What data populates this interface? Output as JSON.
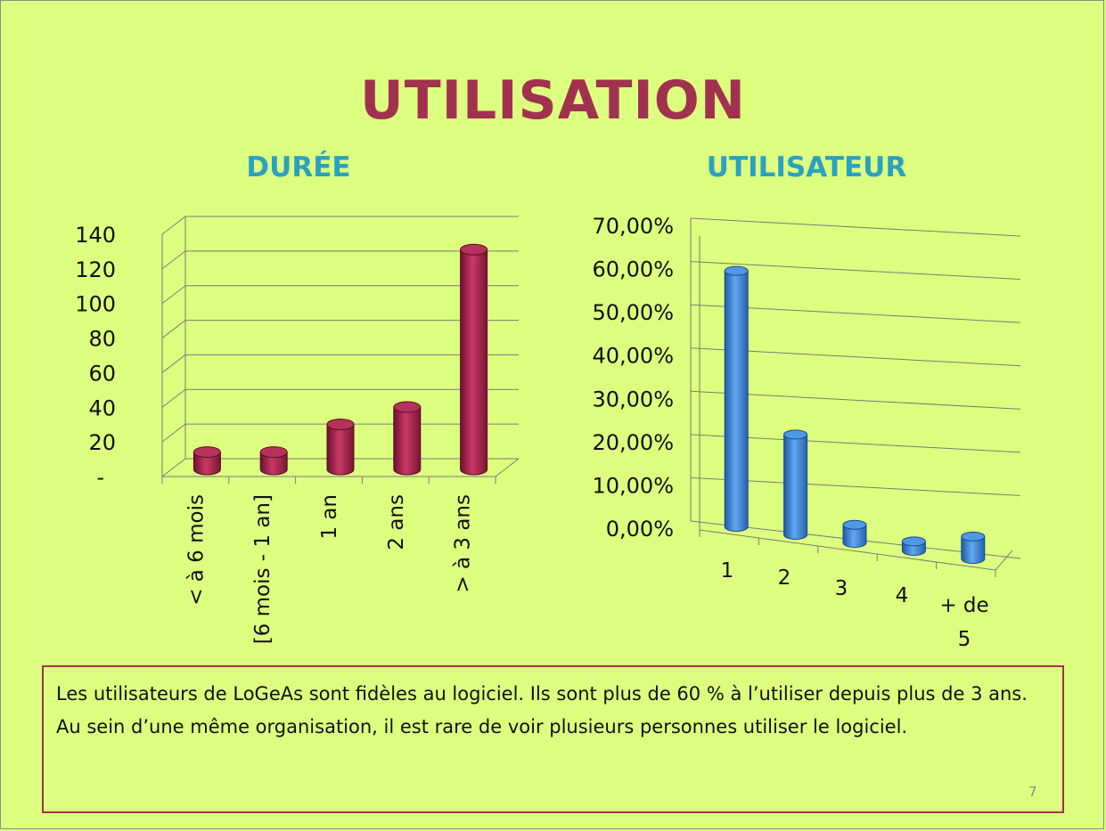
{
  "slide": {
    "title": "UTILISATION",
    "page_number": "7",
    "note_lines": [
      "Les utilisateurs de LoGeAs sont fidèles au logiciel. Ils sont plus de 60 % à l’utiliser depuis plus de 3 ans.",
      "Au sein d’une même organisation, il est rare de voir plusieurs personnes utiliser le logiciel."
    ]
  },
  "colors": {
    "background": "#ddff7f",
    "title": "#a1324f",
    "chart_title": "#2aa1bf",
    "bar_left": "#a3284e",
    "bar_right": "#3d86d8"
  },
  "chart_data": [
    {
      "type": "bar",
      "title": "DURÉE",
      "categories": [
        "< à 6 mois",
        "[6 mois - 1 an]",
        "1 an",
        "2 ans",
        "> à 3 ans"
      ],
      "values": [
        10,
        10,
        26,
        36,
        127
      ],
      "ylim": [
        0,
        140
      ],
      "yticks": [
        "-",
        "20",
        "40",
        "60",
        "80",
        "100",
        "120",
        "140"
      ],
      "grid": true,
      "style": "3d-cylinder"
    },
    {
      "type": "bar",
      "title": "UTILISATEUR",
      "categories": [
        "1",
        "2",
        "3",
        "4",
        "+ de 5"
      ],
      "values": [
        60,
        24,
        5,
        3,
        6
      ],
      "ylim": [
        0,
        70
      ],
      "yticks": [
        "0,00%",
        "10,00%",
        "20,00%",
        "30,00%",
        "40,00%",
        "50,00%",
        "60,00%",
        "70,00%"
      ],
      "grid": true,
      "style": "3d-cylinder"
    }
  ]
}
